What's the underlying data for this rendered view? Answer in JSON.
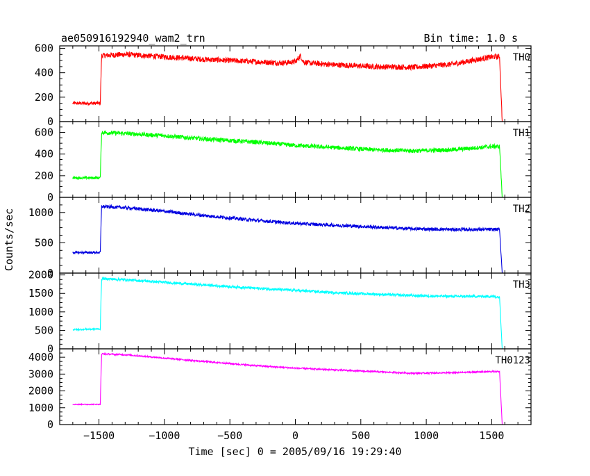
{
  "header": {
    "title": "ae050916192940_wam2_trn",
    "bin_time": "Bin time: 1.0 s"
  },
  "colors": {
    "TH0": "#ff0000",
    "TH1": "#00ff00",
    "TH2": "#0000e0",
    "TH3": "#00ffff",
    "TH0123": "#ff00ff",
    "axes": "#000000",
    "background": "#ffffff"
  },
  "chart_data": {
    "type": "line",
    "title": "ae050916192940_wam2_trn",
    "subtitle": "Bin time: 1.0 s",
    "xlabel": "Time [sec] 0 = 2005/09/16 19:29:40",
    "ylabel": "Counts/sec",
    "xlim": [
      -1800,
      1800
    ],
    "x_ticks": [
      -1500,
      -1000,
      -500,
      0,
      500,
      1000,
      1500
    ],
    "x_tick_labels": [
      "−1500",
      "−1000",
      "−500",
      "0",
      "500",
      "1000",
      "1500"
    ],
    "grid": false,
    "legend": "none",
    "panels": [
      {
        "name": "TH0",
        "ylim": [
          0,
          620
        ],
        "y_ticks": [
          0,
          200,
          400,
          600
        ],
        "y_tick_labels": [
          "0",
          "200",
          "400",
          "600"
        ],
        "x": [
          -1700,
          -1490,
          -1480,
          -1300,
          -1000,
          -700,
          -300,
          -100,
          0,
          40,
          60,
          100,
          300,
          600,
          900,
          1200,
          1500,
          1560,
          1580,
          1700
        ],
        "values": [
          150,
          150,
          540,
          550,
          530,
          510,
          490,
          480,
          490,
          540,
          490,
          480,
          465,
          450,
          445,
          470,
          530,
          530,
          0,
          0
        ],
        "noise": 45
      },
      {
        "name": "TH1",
        "ylim": [
          0,
          700
        ],
        "y_ticks": [
          0,
          200,
          400,
          600
        ],
        "y_tick_labels": [
          "0",
          "200",
          "400",
          "600"
        ],
        "x": [
          -1700,
          -1490,
          -1480,
          -1300,
          -1000,
          -700,
          -300,
          0,
          300,
          600,
          900,
          1200,
          1500,
          1560,
          1580,
          1700
        ],
        "values": [
          180,
          180,
          600,
          590,
          570,
          540,
          510,
          480,
          460,
          440,
          430,
          440,
          470,
          470,
          0,
          0
        ],
        "noise": 40
      },
      {
        "name": "TH2",
        "ylim": [
          0,
          1250
        ],
        "y_ticks": [
          0,
          500,
          1000
        ],
        "y_tick_labels": [
          "0",
          "500",
          "1000"
        ],
        "x": [
          -1700,
          -1490,
          -1480,
          -1300,
          -1000,
          -700,
          -300,
          0,
          300,
          600,
          900,
          1200,
          1500,
          1560,
          1580,
          1700
        ],
        "values": [
          340,
          340,
          1100,
          1080,
          1020,
          950,
          870,
          820,
          790,
          760,
          730,
          720,
          720,
          720,
          0,
          0
        ],
        "noise": 55
      },
      {
        "name": "TH3",
        "ylim": [
          0,
          2050
        ],
        "y_ticks": [
          0,
          500,
          1000,
          1500,
          2000
        ],
        "y_tick_labels": [
          "0",
          "500",
          "1000",
          "1500",
          "2000"
        ],
        "x": [
          -1700,
          -1490,
          -1480,
          -1300,
          -1000,
          -700,
          -300,
          0,
          300,
          600,
          900,
          1200,
          1500,
          1560,
          1580,
          1700
        ],
        "values": [
          520,
          540,
          1900,
          1870,
          1800,
          1730,
          1640,
          1580,
          1520,
          1480,
          1440,
          1420,
          1420,
          1400,
          0,
          0
        ],
        "noise": 70
      },
      {
        "name": "TH0123",
        "ylim": [
          0,
          4500
        ],
        "y_ticks": [
          0,
          1000,
          2000,
          3000,
          4000
        ],
        "y_tick_labels": [
          "0",
          "1000",
          "2000",
          "3000",
          "4000"
        ],
        "x": [
          -1700,
          -1490,
          -1480,
          -1300,
          -1000,
          -700,
          -300,
          0,
          300,
          600,
          900,
          1200,
          1500,
          1560,
          1580,
          1700
        ],
        "values": [
          1200,
          1200,
          4200,
          4150,
          3950,
          3750,
          3500,
          3350,
          3250,
          3150,
          3050,
          3080,
          3150,
          3150,
          0,
          0
        ],
        "noise": 90
      }
    ]
  }
}
